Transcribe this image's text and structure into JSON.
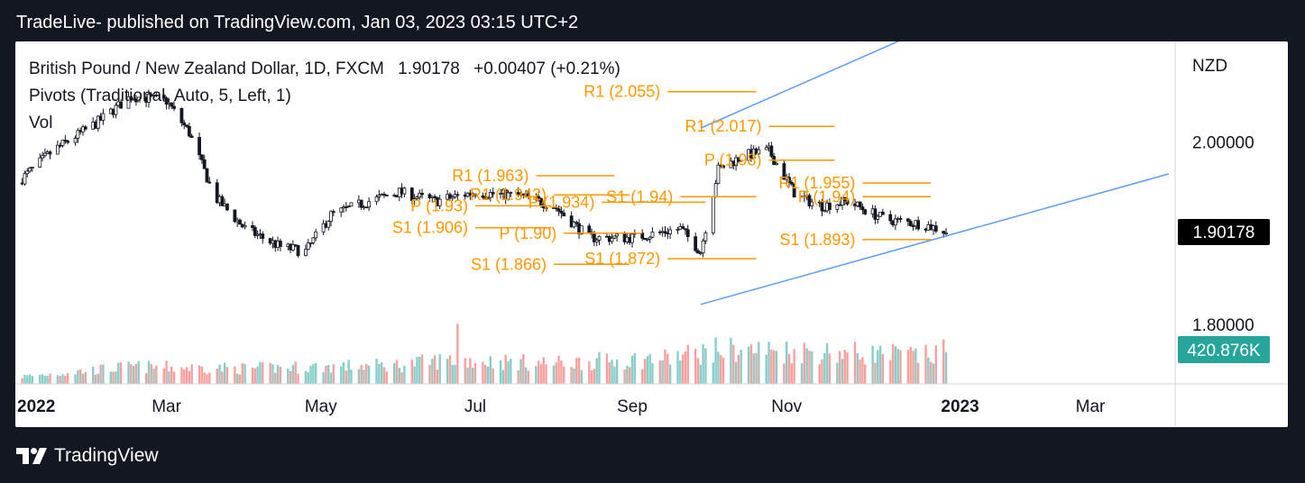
{
  "header": {
    "text": "TradeLive- published on TradingView.com, Jan 03, 2023 03:15 UTC+2"
  },
  "footer": {
    "brand": "TradingView"
  },
  "legend": {
    "symbol_line": "British Pound / New Zealand Dollar, 1D, FXCM",
    "last_value": "1.90178",
    "change": "+0.00407 (+0.21%)",
    "indicator1": "Pivots (Traditional, Auto, 5, Left, 1)",
    "indicator2": "Vol"
  },
  "colors": {
    "up": "#26a69a",
    "down": "#ef5350",
    "candle": "#131722",
    "pivot": "#ff9800",
    "trend": "#5b9cf6",
    "grid": "#e0e3eb"
  },
  "chart_data": {
    "type": "candlestick",
    "title": "British Pound / New Zealand Dollar, 1D, FXCM",
    "currency": "NZD",
    "ylim": [
      1.735,
      2.11
    ],
    "y_ticks": [
      "2.00000",
      "1.80000"
    ],
    "last_price": "1.90178",
    "last_volume": "420.876K",
    "x_ticks": [
      {
        "label": "2022",
        "date": "2022-01-01",
        "bold": true
      },
      {
        "label": "Mar",
        "date": "2022-03-01",
        "bold": false
      },
      {
        "label": "May",
        "date": "2022-05-01",
        "bold": false
      },
      {
        "label": "Jul",
        "date": "2022-07-01",
        "bold": false
      },
      {
        "label": "Sep",
        "date": "2022-09-01",
        "bold": false
      },
      {
        "label": "Nov",
        "date": "2022-11-01",
        "bold": false
      },
      {
        "label": "2023",
        "date": "2023-01-01",
        "bold": true
      },
      {
        "label": "Mar",
        "date": "2023-03-01",
        "bold": false
      }
    ],
    "price_path": [
      [
        "2022-01-01",
        1.955
      ],
      [
        "2022-01-15",
        1.99
      ],
      [
        "2022-02-01",
        2.02
      ],
      [
        "2022-02-15",
        2.05
      ],
      [
        "2022-03-01",
        2.045
      ],
      [
        "2022-03-10",
        2.01
      ],
      [
        "2022-03-20",
        1.94
      ],
      [
        "2022-04-01",
        1.905
      ],
      [
        "2022-04-15",
        1.885
      ],
      [
        "2022-04-25",
        1.88
      ],
      [
        "2022-05-05",
        1.92
      ],
      [
        "2022-05-20",
        1.935
      ],
      [
        "2022-06-01",
        1.945
      ],
      [
        "2022-06-15",
        1.935
      ],
      [
        "2022-07-01",
        1.945
      ],
      [
        "2022-07-20",
        1.94
      ],
      [
        "2022-08-01",
        1.93
      ],
      [
        "2022-08-15",
        1.895
      ],
      [
        "2022-09-01",
        1.895
      ],
      [
        "2022-09-20",
        1.905
      ],
      [
        "2022-09-28",
        1.88
      ],
      [
        "2022-10-05",
        1.97
      ],
      [
        "2022-10-15",
        1.985
      ],
      [
        "2022-10-25",
        1.99
      ],
      [
        "2022-11-05",
        1.94
      ],
      [
        "2022-11-15",
        1.93
      ],
      [
        "2022-11-25",
        1.935
      ],
      [
        "2022-12-10",
        1.915
      ],
      [
        "2022-12-25",
        1.91
      ],
      [
        "2023-01-03",
        1.90178
      ]
    ],
    "volume_path": [
      [
        "2022-01-01",
        8
      ],
      [
        "2022-02-15",
        20
      ],
      [
        "2022-04-01",
        18
      ],
      [
        "2022-06-01",
        22
      ],
      [
        "2022-06-20",
        28
      ],
      [
        "2022-08-01",
        24
      ],
      [
        "2022-09-15",
        30
      ],
      [
        "2022-10-05",
        40
      ],
      [
        "2022-11-10",
        38
      ],
      [
        "2022-12-15",
        34
      ],
      [
        "2023-01-03",
        32
      ]
    ],
    "volume_spikes": [
      {
        "date": "2022-06-24",
        "value": 70,
        "up": true
      },
      {
        "date": "2022-09-24",
        "value": 55,
        "up": true
      },
      {
        "date": "2023-01-02",
        "value": 52,
        "up": false
      }
    ],
    "pivot_levels": [
      {
        "label": "R1 (2.055)",
        "value": 2.055,
        "start": "2022-09-15",
        "end": "2022-10-20"
      },
      {
        "label": "R1 (2.017)",
        "value": 2.017,
        "start": "2022-10-25",
        "end": "2022-11-20"
      },
      {
        "label": "P (1.98)",
        "value": 1.98,
        "start": "2022-10-25",
        "end": "2022-11-20"
      },
      {
        "label": "R1 (1.955)",
        "value": 1.955,
        "start": "2022-12-01",
        "end": "2022-12-28"
      },
      {
        "label": "P (1.94)",
        "value": 1.94,
        "start": "2022-12-01",
        "end": "2022-12-28"
      },
      {
        "label": "S1 (1.893)",
        "value": 1.893,
        "start": "2022-12-01",
        "end": "2022-12-28"
      },
      {
        "label": "S1 (1.94)",
        "value": 1.94,
        "start": "2022-09-20",
        "end": "2022-10-20"
      },
      {
        "label": "P (1.934)",
        "value": 1.934,
        "start": "2022-08-20",
        "end": "2022-09-30"
      },
      {
        "label": "S1 (1.872)",
        "value": 1.872,
        "start": "2022-09-15",
        "end": "2022-10-20"
      },
      {
        "label": "R1 (1.963)",
        "value": 1.963,
        "start": "2022-07-25",
        "end": "2022-08-25"
      },
      {
        "label": "P (1.93)",
        "value": 1.93,
        "start": "2022-07-01",
        "end": "2022-07-31"
      },
      {
        "label": "S1 (1.906)",
        "value": 1.906,
        "start": "2022-07-01",
        "end": "2022-07-31"
      },
      {
        "label": "R1 (1.942)",
        "value": 1.942,
        "start": "2022-08-01",
        "end": "2022-08-31"
      },
      {
        "label": "P (1.90)",
        "value": 1.9,
        "start": "2022-08-05",
        "end": "2022-09-05"
      },
      {
        "label": "S1 (1.866)",
        "value": 1.866,
        "start": "2022-08-01",
        "end": "2022-08-31"
      }
    ],
    "trend_lines": [
      {
        "start": [
          "2022-09-28",
          2.015
        ],
        "end": [
          "2023-01-25",
          2.16
        ]
      },
      {
        "start": [
          "2022-09-28",
          1.822
        ],
        "end": [
          "2023-04-01",
          1.965
        ]
      }
    ]
  }
}
